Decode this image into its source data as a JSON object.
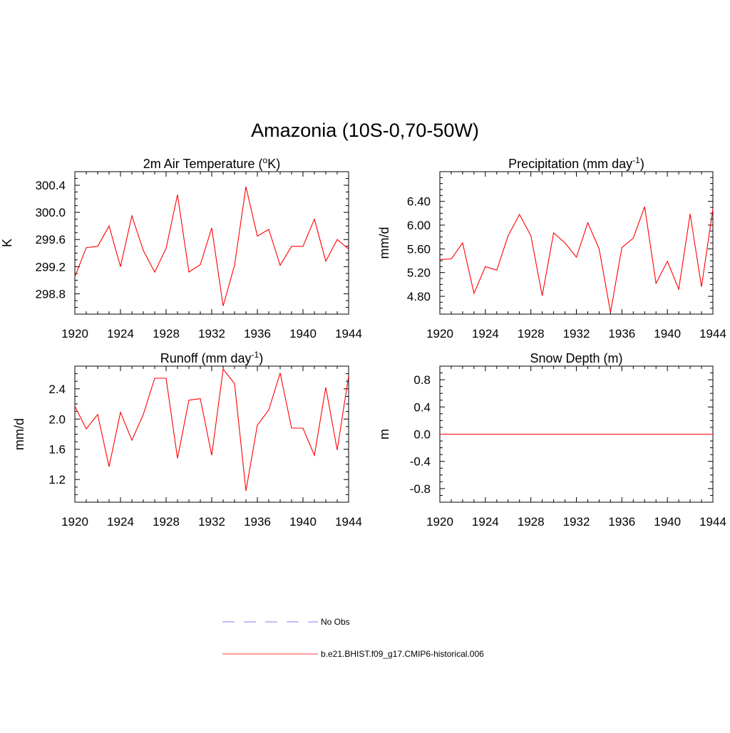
{
  "figure": {
    "title": "Amazonia (10S-0,70-50W)"
  },
  "legend": {
    "entries": [
      {
        "label": "No Obs",
        "style": "dashed",
        "color": "#9999ff"
      },
      {
        "label": "b.e21.BHIST.f09_g17.CMIP6-historical.006",
        "style": "solid",
        "color": "#ff6666"
      }
    ]
  },
  "chart_data": [
    {
      "id": "temp",
      "type": "line",
      "title": "2m Air Temperature (",
      "title_sup": "o",
      "title_after": "K)",
      "ylabel": "K",
      "xlim": [
        1920,
        1944
      ],
      "ylim": [
        298.5,
        300.6
      ],
      "xticks": [
        1920,
        1924,
        1928,
        1932,
        1936,
        1940,
        1944
      ],
      "yticks": [
        298.8,
        299.2,
        299.6,
        300.0,
        300.4
      ],
      "ytick_labels": [
        "298.8",
        "299.2",
        "299.6",
        "300.0",
        "300.4"
      ],
      "series": [
        {
          "color": "#ff0000",
          "x": [
            1920,
            1921,
            1922,
            1923,
            1924,
            1925,
            1926,
            1927,
            1928,
            1929,
            1930,
            1931,
            1932,
            1933,
            1934,
            1935,
            1936,
            1937,
            1938,
            1939,
            1940,
            1941,
            1942,
            1943,
            1944
          ],
          "values": [
            299.05,
            299.48,
            299.5,
            299.8,
            299.2,
            299.95,
            299.44,
            299.12,
            299.47,
            300.26,
            299.12,
            299.23,
            299.77,
            298.62,
            299.22,
            300.38,
            299.65,
            299.75,
            299.22,
            299.5,
            299.5,
            299.9,
            299.28,
            299.6,
            299.46
          ]
        }
      ]
    },
    {
      "id": "precip",
      "type": "line",
      "title": "Precipitation (mm day",
      "title_sup": "-1",
      "title_after": ")",
      "ylabel": "mm/d",
      "xlim": [
        1920,
        1944
      ],
      "ylim": [
        4.5,
        6.9
      ],
      "xticks": [
        1920,
        1924,
        1928,
        1932,
        1936,
        1940,
        1944
      ],
      "yticks": [
        4.8,
        5.2,
        5.6,
        6.0,
        6.4
      ],
      "ytick_labels": [
        "4.80",
        "5.20",
        "5.60",
        "6.00",
        "6.40"
      ],
      "series": [
        {
          "color": "#ff0000",
          "x": [
            1920,
            1921,
            1922,
            1923,
            1924,
            1925,
            1926,
            1927,
            1928,
            1929,
            1930,
            1931,
            1932,
            1933,
            1934,
            1935,
            1936,
            1937,
            1938,
            1939,
            1940,
            1941,
            1942,
            1943,
            1944
          ],
          "values": [
            5.42,
            5.43,
            5.7,
            4.85,
            5.3,
            5.24,
            5.82,
            6.18,
            5.82,
            4.81,
            5.87,
            5.7,
            5.46,
            6.04,
            5.6,
            4.53,
            5.62,
            5.78,
            6.31,
            5.02,
            5.39,
            4.92,
            6.19,
            4.96,
            6.27
          ]
        }
      ]
    },
    {
      "id": "runoff",
      "type": "line",
      "title": "Runoff (mm day",
      "title_sup": "-1",
      "title_after": ")",
      "ylabel": "mm/d",
      "xlim": [
        1920,
        1944
      ],
      "ylim": [
        0.9,
        2.7
      ],
      "xticks": [
        1920,
        1924,
        1928,
        1932,
        1936,
        1940,
        1944
      ],
      "yticks": [
        1.2,
        1.6,
        2.0,
        2.4
      ],
      "ytick_labels": [
        "1.2",
        "1.6",
        "2.0",
        "2.4"
      ],
      "series": [
        {
          "color": "#ff0000",
          "x": [
            1920,
            1921,
            1922,
            1923,
            1924,
            1925,
            1926,
            1927,
            1928,
            1929,
            1930,
            1931,
            1932,
            1933,
            1934,
            1935,
            1936,
            1937,
            1938,
            1939,
            1940,
            1941,
            1942,
            1943,
            1944
          ],
          "values": [
            2.17,
            1.87,
            2.06,
            1.37,
            2.09,
            1.72,
            2.06,
            2.54,
            2.54,
            1.48,
            2.25,
            2.27,
            1.52,
            2.66,
            2.47,
            1.05,
            1.92,
            2.12,
            2.61,
            1.88,
            1.88,
            1.52,
            2.42,
            1.59,
            2.57
          ]
        }
      ]
    },
    {
      "id": "snow",
      "type": "line",
      "title": "Snow Depth (m)",
      "title_sup": "",
      "title_after": "",
      "ylabel": "m",
      "xlim": [
        1920,
        1944
      ],
      "ylim": [
        -1.0,
        1.0
      ],
      "xticks": [
        1920,
        1924,
        1928,
        1932,
        1936,
        1940,
        1944
      ],
      "yticks": [
        -0.8,
        -0.4,
        0.0,
        0.4,
        0.8
      ],
      "ytick_labels": [
        "-0.8",
        "-0.4",
        "0.0",
        "0.4",
        "0.8"
      ],
      "series": [
        {
          "color": "#ff0000",
          "x": [
            1920,
            1921,
            1922,
            1923,
            1924,
            1925,
            1926,
            1927,
            1928,
            1929,
            1930,
            1931,
            1932,
            1933,
            1934,
            1935,
            1936,
            1937,
            1938,
            1939,
            1940,
            1941,
            1942,
            1943,
            1944
          ],
          "values": [
            0,
            0,
            0,
            0,
            0,
            0,
            0,
            0,
            0,
            0,
            0,
            0,
            0,
            0,
            0,
            0,
            0,
            0,
            0,
            0,
            0,
            0,
            0,
            0,
            0
          ]
        }
      ]
    }
  ]
}
